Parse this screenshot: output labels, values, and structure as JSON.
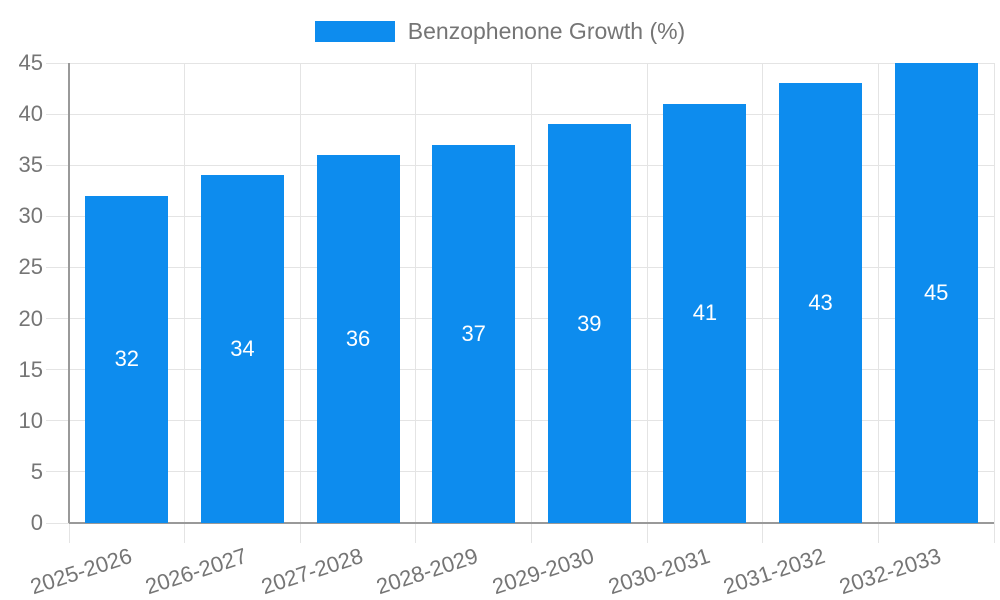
{
  "colors": {
    "bar": "#0d8cee",
    "grid": "#e4e4e4",
    "axis": "#999999",
    "tick_text": "#757575",
    "value_label": "#ffffff",
    "background": "#ffffff"
  },
  "chart_data": {
    "type": "bar",
    "title": "",
    "xlabel": "",
    "ylabel": "",
    "legend": {
      "label": "Benzophenone Growth (%)",
      "position": "top"
    },
    "categories": [
      "2025-2026",
      "2026-2027",
      "2027-2028",
      "2028-2029",
      "2029-2030",
      "2030-2031",
      "2031-2032",
      "2032-2033"
    ],
    "series": [
      {
        "name": "Benzophenone Growth (%)",
        "values": [
          32,
          34,
          36,
          37,
          39,
          41,
          43,
          45
        ]
      }
    ],
    "value_labels_shown": true,
    "yticks": [
      0,
      5,
      10,
      15,
      20,
      25,
      30,
      35,
      40,
      45
    ],
    "ylim": [
      0,
      45
    ],
    "grid": true,
    "x_label_rotation_deg": -18
  }
}
